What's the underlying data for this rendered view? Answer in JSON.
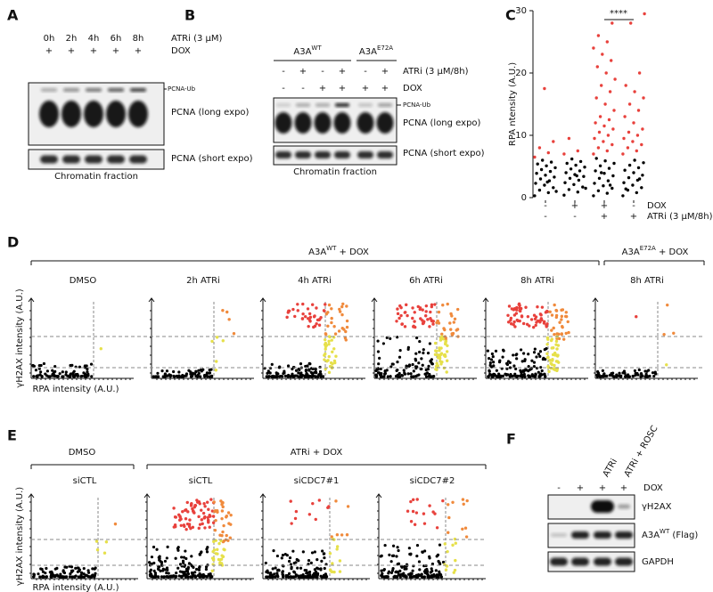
{
  "panel_labels": [
    "A",
    "B",
    "C",
    "D",
    "E",
    "F"
  ],
  "A": {
    "timepoints": [
      "0h",
      "2h",
      "4h",
      "6h",
      "8h"
    ],
    "treatment_label": "ATRi (3 µM)",
    "dox_signs": [
      "+",
      "+",
      "+",
      "+",
      "+"
    ],
    "dox_label": "DOX",
    "band_ub": "PCNA-Ub",
    "blot_long": "PCNA (long expo)",
    "blot_short": "PCNA (short expo)",
    "caption": "Chromatin fraction"
  },
  "B": {
    "group1": {
      "base": "A3A",
      "sup": "WT"
    },
    "group2": {
      "base": "A3A",
      "sup": "E72A"
    },
    "atri_signs": [
      "-",
      "+",
      "-",
      "+",
      "-",
      "+"
    ],
    "atri_label": "ATRi (3 µM/8h)",
    "dox_signs": [
      "-",
      "-",
      "+",
      "+",
      "+",
      "+"
    ],
    "dox_label": "DOX",
    "band_ub": "PCNA-Ub",
    "blot_long": "PCNA (long expo)",
    "blot_short": "PCNA (short expo)",
    "caption": "Chromatin fraction"
  },
  "chart_data": {
    "type": "strip",
    "ylabel": "RPA ntensity (A.U.)",
    "ylim": [
      0,
      30
    ],
    "yticks": [
      0,
      10,
      20,
      30
    ],
    "significance": "****",
    "colors": {
      "low": "#000000",
      "high": "#e8413c"
    },
    "rows": [
      {
        "label": "DOX",
        "signs": [
          "-",
          "+",
          "+",
          "-"
        ]
      },
      {
        "label": "ATRi (3 µM/8h)",
        "signs": [
          "-",
          "-",
          "+",
          "+"
        ]
      }
    ],
    "groups": [
      {
        "black": [
          0.3,
          0.8,
          1.2,
          1.6,
          2.0,
          2.3,
          2.7,
          3.0,
          3.3,
          3.6,
          3.9,
          4.2,
          4.5,
          4.8,
          5.1,
          5.4,
          5.7,
          6.0,
          1.0,
          2.5
        ],
        "red": [
          6.5,
          7.2,
          8.0,
          9.0,
          17.5
        ]
      },
      {
        "black": [
          0.4,
          0.9,
          1.3,
          1.7,
          2.1,
          2.4,
          2.8,
          3.1,
          3.4,
          3.7,
          4.0,
          4.3,
          4.6,
          4.9,
          5.2,
          5.5,
          5.8,
          6.2,
          1.5,
          3.5
        ],
        "red": [
          7.0,
          7.5,
          9.5
        ]
      },
      {
        "black": [
          0.3,
          0.7,
          1.1,
          1.5,
          1.9,
          2.3,
          2.7,
          3.1,
          3.5,
          3.9,
          4.3,
          4.7,
          5.1,
          5.5,
          5.9,
          6.3,
          2.0,
          4.0
        ],
        "red": [
          7,
          7.5,
          8,
          8.5,
          9,
          9.5,
          10,
          10.5,
          11,
          11.5,
          12,
          12.5,
          13,
          14,
          15,
          16,
          17,
          18,
          19,
          20,
          21,
          22,
          23,
          24,
          25,
          26,
          28
        ]
      },
      {
        "black": [
          0.3,
          0.8,
          1.2,
          1.6,
          2.0,
          2.4,
          2.8,
          3.2,
          3.6,
          4.0,
          4.4,
          4.8,
          5.2,
          5.6,
          6.0,
          1.4,
          3.0
        ],
        "red": [
          7,
          7.5,
          8,
          8.5,
          9,
          9.5,
          10,
          10.5,
          11,
          12,
          13,
          14,
          15,
          16,
          17,
          18,
          20,
          28,
          29.5
        ]
      }
    ]
  },
  "D": {
    "group1": {
      "base": "A3A",
      "sup": "WT",
      "suffix": " + DOX"
    },
    "group2": {
      "base": "A3A",
      "sup": "E72A",
      "suffix": " + DOX"
    },
    "titles": [
      "DMSO",
      "2h ATRi",
      "4h ATRi",
      "6h ATRi",
      "8h ATRi",
      "8h ATRi"
    ],
    "ylabel": "γH2AX intensity (A.U.)",
    "xlabel": "RPA intensity (A.U.)"
  },
  "E": {
    "group1": "DMSO",
    "group2": "ATRi + DOX",
    "titles": [
      "siCTL",
      "siCTL",
      "siCDC7#1",
      "siCDC7#2"
    ],
    "ylabel": "γH2AX intensity (A.U.)",
    "xlabel": "RPA intensity (A.U.)"
  },
  "F": {
    "columns": [
      "ATRi",
      "ATRi + ROSC"
    ],
    "dox_signs": [
      "-",
      "+",
      "+",
      "+"
    ],
    "dox_label": "DOX",
    "blot1": "γH2AX",
    "blot2": {
      "base": "A3A",
      "sup": "WT",
      "suffix": " (Flag)"
    },
    "blot3": "GAPDH"
  }
}
